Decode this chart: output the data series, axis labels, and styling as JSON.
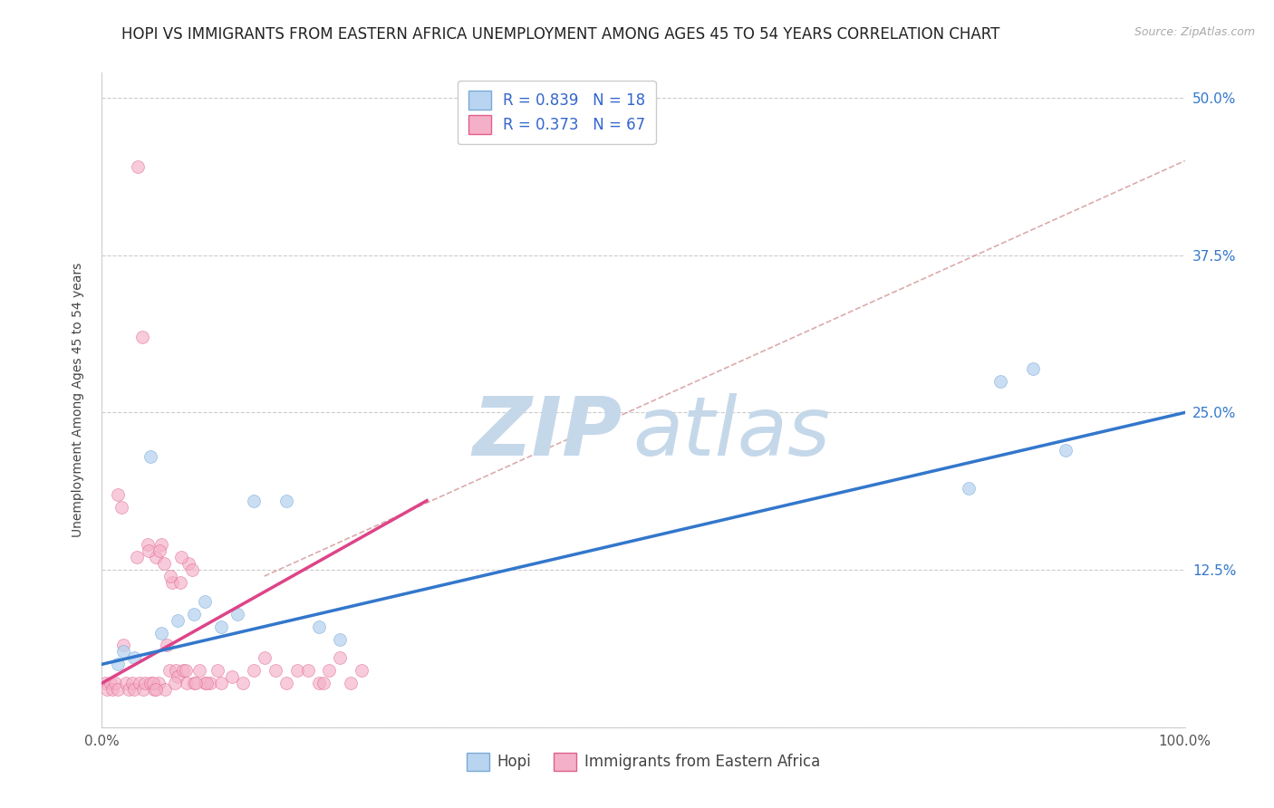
{
  "title": "HOPI VS IMMIGRANTS FROM EASTERN AFRICA UNEMPLOYMENT AMONG AGES 45 TO 54 YEARS CORRELATION CHART",
  "source": "Source: ZipAtlas.com",
  "ylabel": "Unemployment Among Ages 45 to 54 years",
  "xlim": [
    0,
    100
  ],
  "ylim": [
    0,
    52
  ],
  "yticks": [
    0,
    12.5,
    25.0,
    37.5,
    50.0
  ],
  "ytick_labels": [
    "",
    "12.5%",
    "25.0%",
    "37.5%",
    "50.0%"
  ],
  "xtick_labels": [
    "0.0%",
    "100.0%"
  ],
  "background_color": "#ffffff",
  "grid_color": "#cccccc",
  "hopi_color": "#b8d4f0",
  "hopi_edge_color": "#7aaad8",
  "immigrants_color": "#f4b0c8",
  "immigrants_edge_color": "#e0608a",
  "hopi_R": 0.839,
  "hopi_N": 18,
  "immigrants_R": 0.373,
  "immigrants_N": 67,
  "watermark_zip_color": "#c5d8ea",
  "watermark_atlas_color": "#c5d8ea",
  "hopi_line_color": "#3377cc",
  "immigrants_line_color": "#dd4488",
  "dashed_line_color": "#cc8888",
  "marker_size": 100,
  "title_fontsize": 12,
  "label_fontsize": 10,
  "tick_fontsize": 11,
  "legend_fontsize": 12,
  "legend_text_color": "#3366cc",
  "legend_N_color": "#ee3333",
  "hopi_scatter_x": [
    1.5,
    2.0,
    3.0,
    4.5,
    5.5,
    7.0,
    8.5,
    9.5,
    11.0,
    12.5,
    14.0,
    17.0,
    20.0,
    22.0,
    80.0,
    83.0,
    86.0,
    89.0
  ],
  "hopi_scatter_y": [
    5.0,
    6.0,
    5.5,
    21.5,
    7.5,
    8.5,
    9.0,
    10.0,
    8.0,
    9.0,
    18.0,
    18.0,
    8.0,
    7.0,
    19.0,
    27.5,
    28.5,
    22.0
  ],
  "immigrants_scatter_x": [
    0.3,
    0.5,
    0.8,
    1.0,
    1.2,
    1.5,
    1.8,
    2.0,
    2.2,
    2.5,
    2.8,
    3.0,
    3.2,
    3.5,
    3.8,
    4.0,
    4.2,
    4.5,
    4.8,
    5.0,
    5.2,
    5.5,
    5.8,
    6.0,
    6.2,
    6.5,
    6.8,
    7.0,
    7.2,
    7.5,
    7.8,
    8.0,
    8.5,
    9.0,
    9.5,
    10.0,
    11.0,
    12.0,
    13.0,
    14.0,
    15.0,
    16.0,
    17.0,
    18.0,
    19.0,
    20.0,
    21.0,
    22.0,
    23.0,
    24.0,
    3.3,
    4.3,
    5.3,
    6.3,
    7.3,
    8.3,
    3.7,
    5.7,
    7.7,
    9.7,
    4.7,
    6.7,
    8.7,
    10.7,
    5.0,
    20.5,
    1.5
  ],
  "immigrants_scatter_y": [
    3.5,
    3.0,
    3.5,
    3.0,
    3.5,
    3.0,
    17.5,
    6.5,
    3.5,
    3.0,
    3.5,
    3.0,
    13.5,
    3.5,
    3.0,
    3.5,
    14.5,
    3.5,
    3.0,
    13.5,
    3.5,
    14.5,
    3.0,
    6.5,
    4.5,
    11.5,
    4.5,
    4.0,
    11.5,
    4.5,
    3.5,
    13.0,
    3.5,
    4.5,
    3.5,
    3.5,
    3.5,
    4.0,
    3.5,
    4.5,
    5.5,
    4.5,
    3.5,
    4.5,
    4.5,
    3.5,
    4.5,
    5.5,
    3.5,
    4.5,
    44.5,
    14.0,
    14.0,
    12.0,
    13.5,
    12.5,
    31.0,
    13.0,
    4.5,
    3.5,
    3.5,
    3.5,
    3.5,
    4.5,
    3.0,
    3.5,
    18.5
  ],
  "hopi_line_x": [
    0,
    100
  ],
  "hopi_line_y": [
    5.0,
    25.0
  ],
  "immigrants_line_x": [
    0,
    30
  ],
  "immigrants_line_y": [
    3.5,
    18.0
  ],
  "dashed_line_x": [
    15,
    100
  ],
  "dashed_line_y": [
    12,
    45
  ]
}
